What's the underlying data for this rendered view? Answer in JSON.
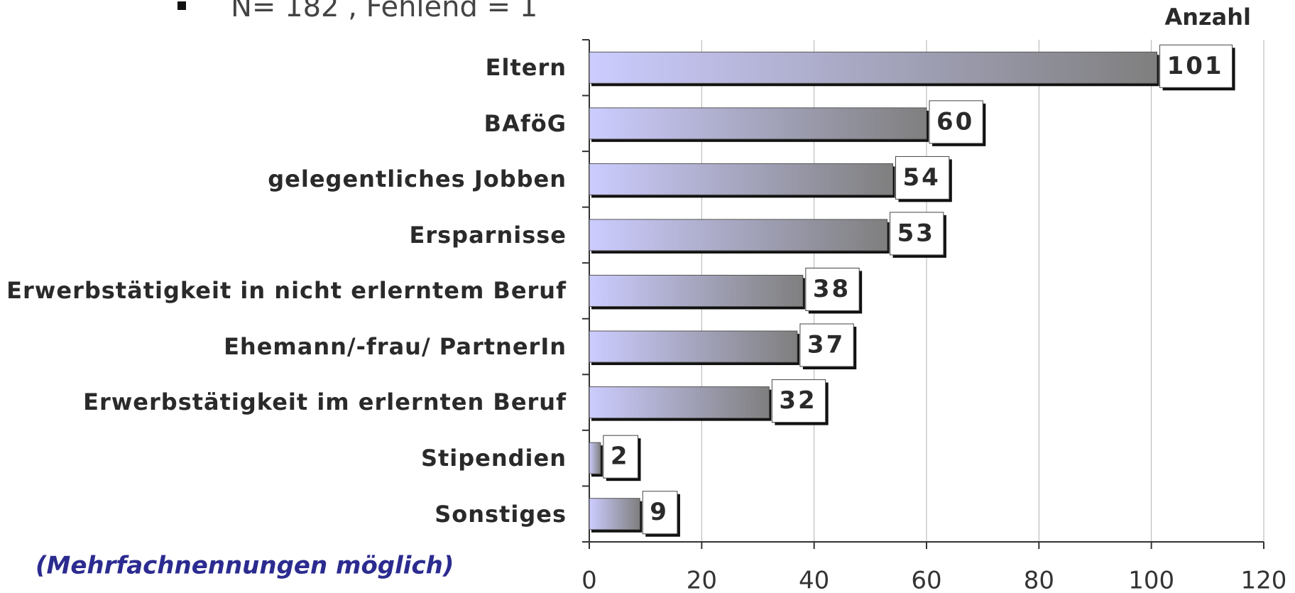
{
  "chart_data": {
    "type": "bar",
    "orientation": "horizontal",
    "subtitle": "N= 182 , Fehlend = 1",
    "xlabel": "Anzahl",
    "annotation": "(Mehrfachnennungen möglich)",
    "categories": [
      "Eltern",
      "BAföG",
      "gelegentliches Jobben",
      "Ersparnisse",
      "Erwerbstätigkeit in nicht erlerntem Beruf",
      "Ehemann/-frau/ PartnerIn",
      "Erwerbstätigkeit im erlernten Beruf",
      "Stipendien",
      "Sonstiges"
    ],
    "values": [
      101,
      60,
      54,
      53,
      38,
      37,
      32,
      2,
      9
    ],
    "color_start": "#ccccff",
    "color_end": "#7f7f7f",
    "xlim": [
      0,
      120
    ],
    "xticks": [
      0,
      20,
      40,
      60,
      80,
      100,
      120
    ],
    "grid": true
  }
}
